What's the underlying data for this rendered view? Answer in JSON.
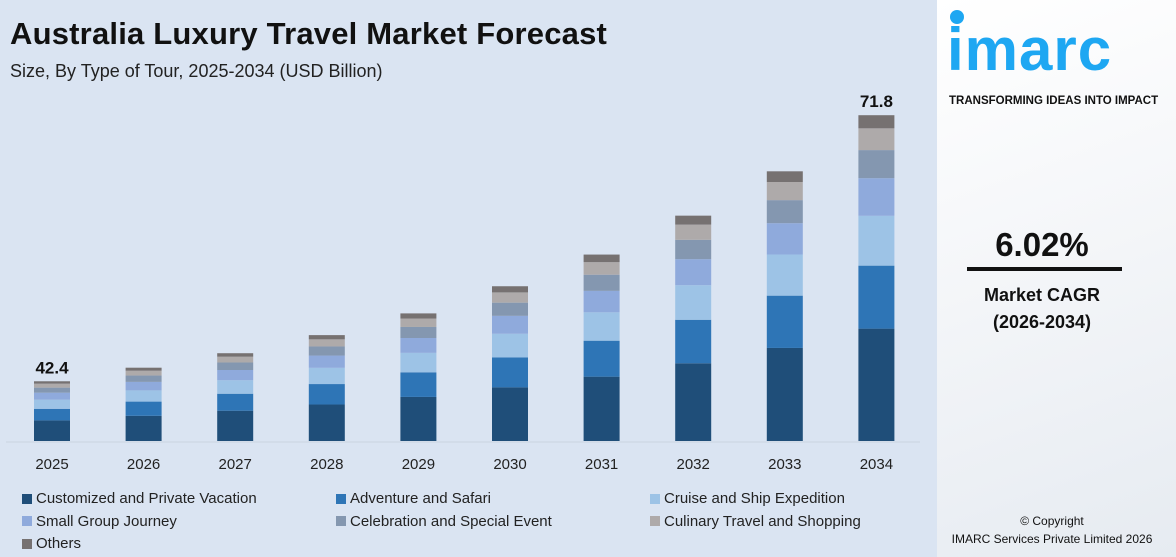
{
  "chart_data": {
    "type": "bar",
    "stacked": true,
    "title": "Australia Luxury Travel Market Forecast",
    "subtitle": "Size, By Type of Tour, 2025-2034 (USD Billion)",
    "xlabel": "",
    "ylabel": "",
    "categories": [
      "2025",
      "2026",
      "2027",
      "2028",
      "2029",
      "2030",
      "2031",
      "2032",
      "2033",
      "2034"
    ],
    "totals": [
      42.4,
      43.9,
      45.5,
      47.5,
      49.9,
      52.9,
      56.4,
      60.7,
      65.6,
      71.8
    ],
    "data_labels": {
      "2025": "42.4",
      "2034": "71.8"
    },
    "grid": false,
    "y_axis_visible": false,
    "legend_position": "bottom",
    "series": [
      {
        "name": "Customized and Private Vacation",
        "color": "#1f4e79",
        "values": [
          14.6,
          15.1,
          15.7,
          16.4,
          17.2,
          18.3,
          19.5,
          20.9,
          22.6,
          24.8
        ]
      },
      {
        "name": "Adventure and Safari",
        "color": "#2e75b6",
        "values": [
          8.2,
          8.5,
          8.8,
          9.2,
          9.6,
          10.2,
          10.9,
          11.7,
          12.7,
          13.9
        ]
      },
      {
        "name": "Cruise and Ship Expedition",
        "color": "#9dc3e6",
        "values": [
          6.5,
          6.7,
          7.0,
          7.3,
          7.6,
          8.1,
          8.6,
          9.3,
          10.0,
          11.0
        ]
      },
      {
        "name": "Small Group Journey",
        "color": "#8faadc",
        "values": [
          4.9,
          5.1,
          5.3,
          5.5,
          5.8,
          6.1,
          6.5,
          7.0,
          7.6,
          8.3
        ]
      },
      {
        "name": "Celebration and Special Event",
        "color": "#8497b0",
        "values": [
          3.6,
          3.8,
          3.9,
          4.1,
          4.3,
          4.5,
          4.9,
          5.2,
          5.6,
          6.2
        ]
      },
      {
        "name": "Culinary Travel and Shopping",
        "color": "#aeaaaa",
        "values": [
          2.8,
          2.9,
          3.0,
          3.2,
          3.3,
          3.5,
          3.8,
          4.1,
          4.4,
          4.8
        ]
      },
      {
        "name": "Others",
        "color": "#767171",
        "values": [
          1.7,
          1.8,
          1.8,
          1.9,
          2.0,
          2.1,
          2.3,
          2.4,
          2.6,
          2.9
        ]
      }
    ]
  },
  "brand": {
    "logo_text": "imarc",
    "tagline": "TRANSFORMING IDEAS INTO IMPACT",
    "color": "#1ea7f2"
  },
  "cagr": {
    "value": "6.02%",
    "label": "Market CAGR",
    "period": "(2026-2034)"
  },
  "footer": {
    "copyright": "© Copyright",
    "company": "IMARC Services Private Limited 2026"
  }
}
